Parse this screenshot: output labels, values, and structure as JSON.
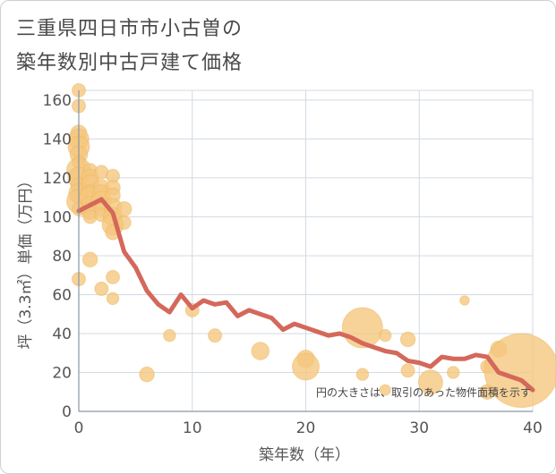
{
  "chart_data": {
    "type": "scatter",
    "title_line1": "三重県四日市市小古曽の",
    "title_line2": "築年数別中古戸建て価格",
    "xlabel": "築年数（年）",
    "ylabel": "坪（3.3㎡）単価（万円）",
    "xlim": [
      0,
      40
    ],
    "ylim": [
      0,
      165
    ],
    "xticks": [
      0,
      10,
      20,
      30,
      40
    ],
    "yticks": [
      0,
      20,
      40,
      60,
      80,
      100,
      120,
      140,
      160
    ],
    "note": "円の大きさは、取引のあった物件面積を示す",
    "colors": {
      "bubble": "#f5c77e",
      "line": "#d4685a",
      "grid": "#d3dae3",
      "axis": "#8a96a3"
    },
    "scatter_points": [
      {
        "x": 0,
        "y": 165,
        "s": 1
      },
      {
        "x": 0,
        "y": 157,
        "s": 1
      },
      {
        "x": 0,
        "y": 143,
        "s": 1.2
      },
      {
        "x": 0,
        "y": 140,
        "s": 1.5
      },
      {
        "x": 0,
        "y": 136,
        "s": 1.6
      },
      {
        "x": 0,
        "y": 132,
        "s": 1.3
      },
      {
        "x": 0,
        "y": 128,
        "s": 1
      },
      {
        "x": 0,
        "y": 124,
        "s": 1.8
      },
      {
        "x": 0,
        "y": 120,
        "s": 1.6
      },
      {
        "x": 0,
        "y": 116,
        "s": 1.2
      },
      {
        "x": 0,
        "y": 112,
        "s": 1.5
      },
      {
        "x": 0,
        "y": 108,
        "s": 1.8
      },
      {
        "x": 0,
        "y": 104,
        "s": 1
      },
      {
        "x": 0,
        "y": 68,
        "s": 1
      },
      {
        "x": 1,
        "y": 124,
        "s": 1
      },
      {
        "x": 1,
        "y": 120,
        "s": 1.3
      },
      {
        "x": 1,
        "y": 117,
        "s": 1.3
      },
      {
        "x": 1,
        "y": 113,
        "s": 1
      },
      {
        "x": 1,
        "y": 110,
        "s": 1.6
      },
      {
        "x": 1,
        "y": 106,
        "s": 1.3
      },
      {
        "x": 1,
        "y": 103,
        "s": 1.3
      },
      {
        "x": 1,
        "y": 100,
        "s": 1
      },
      {
        "x": 1,
        "y": 78,
        "s": 1.1
      },
      {
        "x": 2,
        "y": 123,
        "s": 1
      },
      {
        "x": 2,
        "y": 115,
        "s": 1.2
      },
      {
        "x": 2,
        "y": 112,
        "s": 1.3
      },
      {
        "x": 2,
        "y": 108,
        "s": 1.5
      },
      {
        "x": 2,
        "y": 104,
        "s": 1
      },
      {
        "x": 2,
        "y": 101,
        "s": 1
      },
      {
        "x": 2,
        "y": 63,
        "s": 1
      },
      {
        "x": 3,
        "y": 121,
        "s": 1
      },
      {
        "x": 3,
        "y": 115,
        "s": 1.1
      },
      {
        "x": 3,
        "y": 111,
        "s": 1.1
      },
      {
        "x": 3,
        "y": 105,
        "s": 1.3
      },
      {
        "x": 3,
        "y": 100,
        "s": 1.4
      },
      {
        "x": 3,
        "y": 96,
        "s": 1.6
      },
      {
        "x": 3,
        "y": 92,
        "s": 1.1
      },
      {
        "x": 3,
        "y": 69,
        "s": 1
      },
      {
        "x": 3,
        "y": 58,
        "s": 0.9
      },
      {
        "x": 4,
        "y": 104,
        "s": 1.1
      },
      {
        "x": 4,
        "y": 97,
        "s": 1
      },
      {
        "x": 6,
        "y": 19,
        "s": 1.1
      },
      {
        "x": 8,
        "y": 39,
        "s": 0.9
      },
      {
        "x": 10,
        "y": 52,
        "s": 1
      },
      {
        "x": 12,
        "y": 39,
        "s": 1
      },
      {
        "x": 16,
        "y": 31,
        "s": 1.3
      },
      {
        "x": 20,
        "y": 27,
        "s": 1.3
      },
      {
        "x": 20,
        "y": 23,
        "s": 2
      },
      {
        "x": 25,
        "y": 43,
        "s": 3
      },
      {
        "x": 25,
        "y": 19,
        "s": 0.9
      },
      {
        "x": 27,
        "y": 39,
        "s": 0.9
      },
      {
        "x": 27,
        "y": 11,
        "s": 0.8
      },
      {
        "x": 29,
        "y": 37,
        "s": 1.1
      },
      {
        "x": 29,
        "y": 21,
        "s": 1
      },
      {
        "x": 31,
        "y": 15,
        "s": 1.8
      },
      {
        "x": 33,
        "y": 20,
        "s": 0.9
      },
      {
        "x": 34,
        "y": 57,
        "s": 0.7
      },
      {
        "x": 36,
        "y": 23,
        "s": 1
      },
      {
        "x": 36,
        "y": 10,
        "s": 1.1
      },
      {
        "x": 37,
        "y": 32,
        "s": 1.2
      },
      {
        "x": 39,
        "y": 21,
        "s": 5.5
      }
    ],
    "trend_line": {
      "x": [
        0,
        1,
        2,
        3,
        4,
        5,
        6,
        7,
        8,
        9,
        10,
        11,
        12,
        13,
        14,
        15,
        16,
        17,
        18,
        19,
        20,
        21,
        22,
        23,
        24,
        25,
        26,
        27,
        28,
        29,
        30,
        31,
        32,
        33,
        34,
        35,
        36,
        37,
        38,
        39,
        40
      ],
      "y": [
        103,
        106,
        109,
        102,
        82,
        74,
        62,
        55,
        51,
        60,
        53,
        57,
        55,
        56,
        49,
        52,
        50,
        48,
        42,
        45,
        43,
        41,
        39,
        40,
        38,
        35,
        33,
        31,
        30,
        26,
        25,
        23,
        28,
        27,
        27,
        29,
        28,
        20,
        18,
        16,
        11
      ]
    }
  }
}
